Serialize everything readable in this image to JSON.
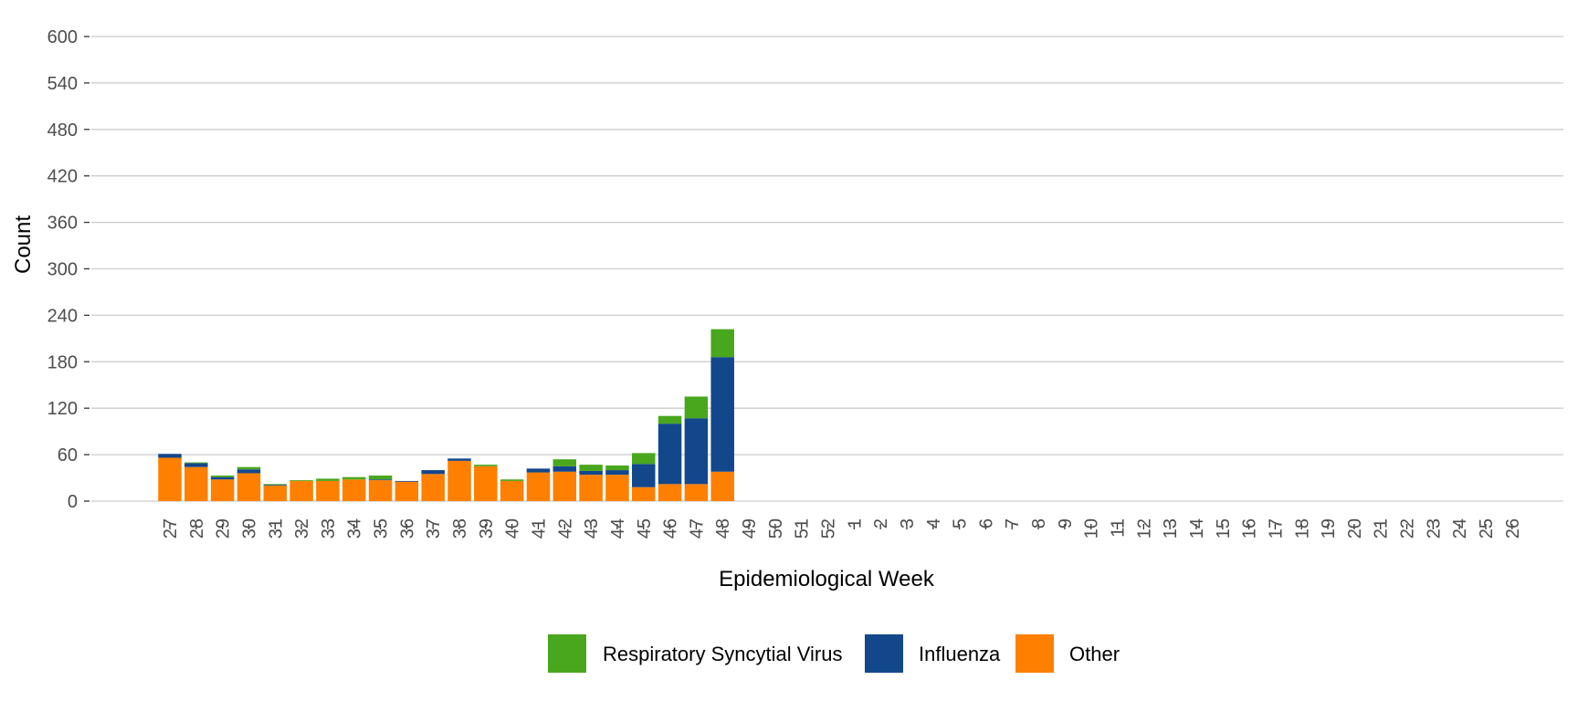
{
  "chart_data": {
    "type": "bar",
    "stacked": true,
    "title": "",
    "xlabel": "Epidemiological Week",
    "ylabel": "Count",
    "ylim": [
      0,
      600
    ],
    "yticks": [
      0,
      60,
      120,
      180,
      240,
      300,
      360,
      420,
      480,
      540,
      600
    ],
    "grid": "horizontal",
    "legend_position": "bottom",
    "categories": [
      "27",
      "28",
      "29",
      "30",
      "31",
      "32",
      "33",
      "34",
      "35",
      "36",
      "37",
      "38",
      "39",
      "40",
      "41",
      "42",
      "43",
      "44",
      "45",
      "46",
      "47",
      "48",
      "49",
      "50",
      "51",
      "52",
      "1",
      "2",
      "3",
      "4",
      "5",
      "6",
      "7",
      "8",
      "9",
      "10",
      "11",
      "12",
      "13",
      "14",
      "15",
      "16",
      "17",
      "18",
      "19",
      "20",
      "21",
      "22",
      "23",
      "24",
      "25",
      "26"
    ],
    "series": [
      {
        "name": "Other",
        "color": "#FF7F00",
        "values": [
          56,
          44,
          28,
          36,
          20,
          26,
          26,
          28,
          27,
          25,
          35,
          52,
          45,
          26,
          37,
          38,
          34,
          34,
          18,
          22,
          22,
          38,
          null,
          null,
          null,
          null,
          null,
          null,
          null,
          null,
          null,
          null,
          null,
          null,
          null,
          null,
          null,
          null,
          null,
          null,
          null,
          null,
          null,
          null,
          null,
          null,
          null,
          null,
          null,
          null,
          null,
          null
        ]
      },
      {
        "name": "Influenza",
        "color": "#13478C",
        "values": [
          5,
          5,
          3,
          5,
          1,
          0,
          0,
          0,
          1,
          1,
          5,
          3,
          0,
          0,
          5,
          7,
          5,
          6,
          30,
          78,
          85,
          148,
          null,
          null,
          null,
          null,
          null,
          null,
          null,
          null,
          null,
          null,
          null,
          null,
          null,
          null,
          null,
          null,
          null,
          null,
          null,
          null,
          null,
          null,
          null,
          null,
          null,
          null,
          null,
          null,
          null,
          null
        ]
      },
      {
        "name": "Respiratory Syncytial Virus",
        "color": "#49A71E",
        "values": [
          0,
          1,
          2,
          3,
          1,
          1,
          3,
          3,
          5,
          0,
          0,
          0,
          2,
          2,
          0,
          9,
          8,
          6,
          14,
          10,
          28,
          36,
          null,
          null,
          null,
          null,
          null,
          null,
          null,
          null,
          null,
          null,
          null,
          null,
          null,
          null,
          null,
          null,
          null,
          null,
          null,
          null,
          null,
          null,
          null,
          null,
          null,
          null,
          null,
          null,
          null,
          null
        ]
      }
    ],
    "legend_order": [
      "Respiratory Syncytial Virus",
      "Influenza",
      "Other"
    ]
  },
  "colors": {
    "background": "#ffffff",
    "gridline": "#CCCCCC",
    "tick_text": "#4D4D4D",
    "axis_title": "#000000"
  }
}
